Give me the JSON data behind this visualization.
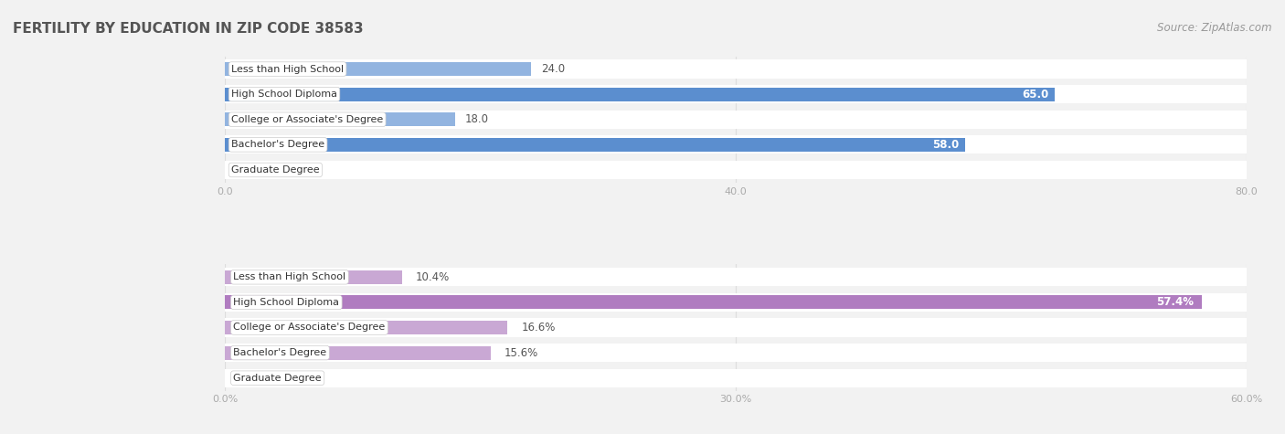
{
  "title": "FERTILITY BY EDUCATION IN ZIP CODE 38583",
  "source_text": "Source: ZipAtlas.com",
  "label_color_inside": "#ffffff",
  "label_color_outside": "#555555",
  "top_chart": {
    "categories": [
      "Less than High School",
      "High School Diploma",
      "College or Associate's Degree",
      "Bachelor's Degree",
      "Graduate Degree"
    ],
    "values": [
      24.0,
      65.0,
      18.0,
      58.0,
      0.0
    ],
    "xlim": [
      0,
      80
    ],
    "xticks": [
      0.0,
      40.0,
      80.0
    ],
    "xtick_labels": [
      "0.0",
      "40.0",
      "80.0"
    ],
    "bar_color_light": "#92b4e0",
    "bar_color_dark": "#5b8ecf",
    "dark_threshold": 40,
    "value_suffix": ""
  },
  "bottom_chart": {
    "categories": [
      "Less than High School",
      "High School Diploma",
      "College or Associate's Degree",
      "Bachelor's Degree",
      "Graduate Degree"
    ],
    "values": [
      10.4,
      57.4,
      16.6,
      15.6,
      0.0
    ],
    "xlim": [
      0,
      60
    ],
    "xticks": [
      0.0,
      30.0,
      60.0
    ],
    "xtick_labels": [
      "0.0%",
      "30.0%",
      "60.0%"
    ],
    "bar_color_light": "#c9a8d4",
    "bar_color_dark": "#b07cc0",
    "dark_threshold": 30,
    "value_suffix": "%"
  },
  "title_fontsize": 11,
  "source_fontsize": 8.5,
  "label_fontsize": 8,
  "value_fontsize": 8.5,
  "tick_fontsize": 8,
  "bg_color": "#f2f2f2",
  "bar_row_bg": "#ffffff",
  "bar_height": 0.55,
  "title_color": "#555555",
  "tick_color": "#aaaaaa",
  "grid_color": "#dddddd"
}
